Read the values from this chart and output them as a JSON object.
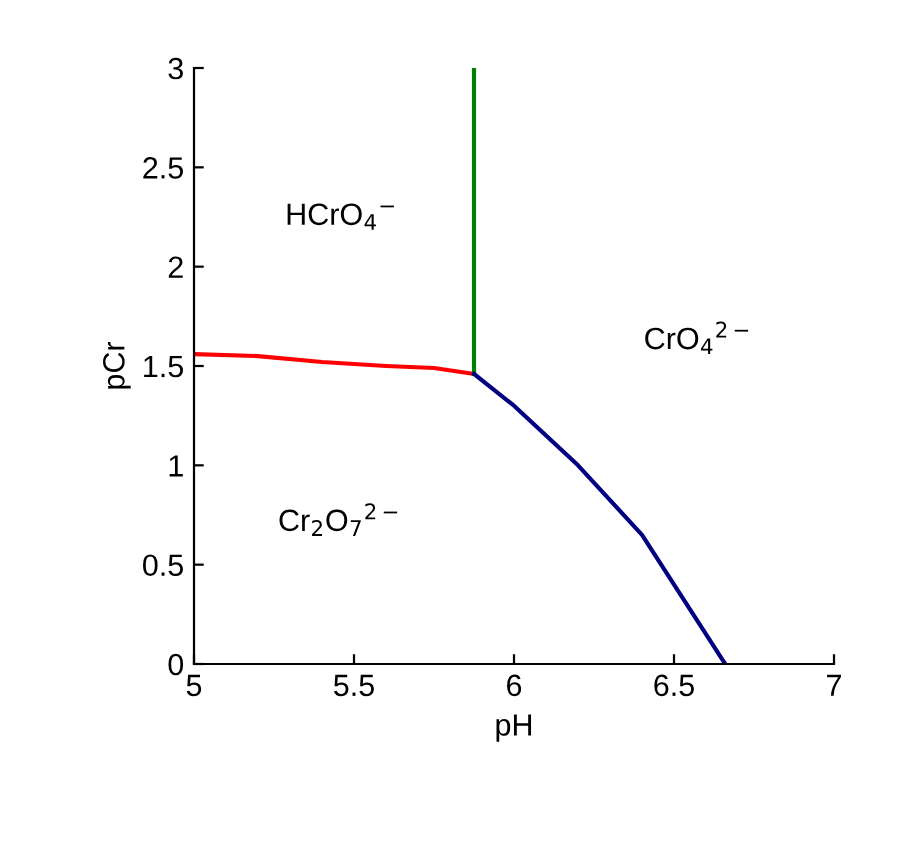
{
  "chart_data": {
    "type": "line",
    "xlabel": "pH",
    "ylabel": "pCr",
    "xlim": [
      5,
      7
    ],
    "ylim": [
      0,
      3
    ],
    "xticks": [
      5,
      5.5,
      6,
      6.5,
      7
    ],
    "yticks": [
      0,
      0.5,
      1,
      1.5,
      2,
      2.5,
      3
    ],
    "grid": false,
    "legend": false,
    "marker": "none",
    "line_style": "solid",
    "series": [
      {
        "color": "#ff0000",
        "x": [
          5,
          5.2,
          5.4,
          5.6,
          5.75,
          5.875
        ],
        "values": [
          1.56,
          1.55,
          1.52,
          1.5,
          1.49,
          1.46
        ]
      },
      {
        "color": "#008000",
        "x": [
          5.875,
          5.875
        ],
        "values": [
          1.46,
          3
        ]
      },
      {
        "color": "#000080",
        "x": [
          5.875,
          6,
          6.2,
          6.4,
          6.66
        ],
        "values": [
          1.46,
          1.3,
          1.0,
          0.65,
          0
        ]
      }
    ],
    "annotations": [
      "HCrO$_{4}$$^{−}$",
      "CrO$_{4}$$^{2−}$",
      "Cr$_{2}$O$_{7}$$^{2−}$"
    ]
  }
}
